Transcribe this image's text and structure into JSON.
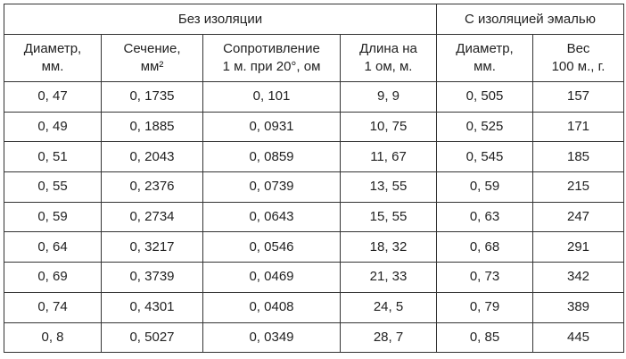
{
  "table": {
    "groups": [
      "Без изоляции",
      "С изоляцией эмалью"
    ],
    "headers": [
      "Диаметр,\nмм.",
      "Сечение,\nмм²",
      "Сопротивление\n1 м. при 20°, ом",
      "Длина на\n1 ом, м.",
      "Диаметр,\nмм.",
      "Вес\n100 м., г."
    ],
    "rows": [
      [
        "0, 47",
        "0, 1735",
        "0, 101",
        "9, 9",
        "0, 505",
        "157"
      ],
      [
        "0, 49",
        "0, 1885",
        "0, 0931",
        "10, 75",
        "0, 525",
        "171"
      ],
      [
        "0, 51",
        "0, 2043",
        "0, 0859",
        "11, 67",
        "0, 545",
        "185"
      ],
      [
        "0, 55",
        "0, 2376",
        "0, 0739",
        "13, 55",
        "0, 59",
        "215"
      ],
      [
        "0, 59",
        "0, 2734",
        "0, 0643",
        "15, 55",
        "0, 63",
        "247"
      ],
      [
        "0, 64",
        "0, 3217",
        "0, 0546",
        "18, 32",
        "0, 68",
        "291"
      ],
      [
        "0, 69",
        "0, 3739",
        "0, 0469",
        "21, 33",
        "0, 73",
        "342"
      ],
      [
        "0, 74",
        "0, 4301",
        "0, 0408",
        "24, 5",
        "0, 79",
        "389"
      ],
      [
        "0, 8",
        "0, 5027",
        "0, 0349",
        "28, 7",
        "0, 85",
        "445"
      ]
    ]
  }
}
